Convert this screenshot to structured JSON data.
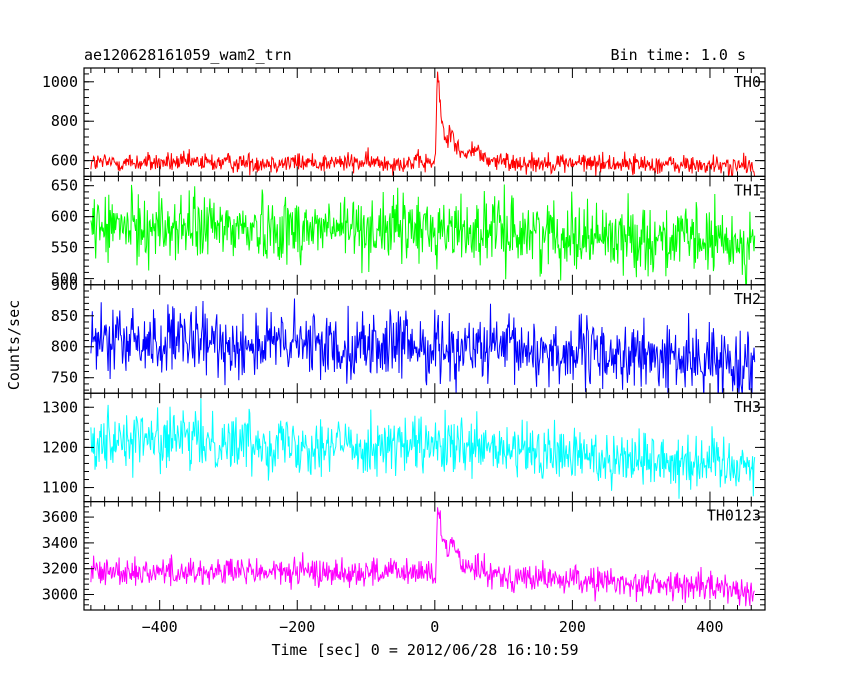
{
  "header": {
    "title": "ae120628161059_wam2_trn",
    "bin_time": "Bin time: 1.0 s"
  },
  "chart_data": {
    "type": "line",
    "xlabel": "Time [sec] 0 = 2012/06/28 16:10:59",
    "ylabel": "Counts/sec",
    "xlim": [
      -510,
      480
    ],
    "x_ticks": [
      -400,
      -200,
      0,
      200,
      400
    ],
    "x_tick_labels": [
      "−400",
      "−200",
      "0",
      "200",
      "400"
    ],
    "x_range": [
      -500,
      465
    ],
    "panels": [
      {
        "name": "TH0",
        "color": "#ff0000",
        "ylim": [
          520,
          1070
        ],
        "y_ticks": [
          600,
          800,
          1000
        ],
        "y_tick_labels": [
          "600",
          "800",
          "1000"
        ],
        "baseline": [
          [
            -500,
            590
          ],
          [
            0,
            590
          ],
          [
            200,
            590
          ],
          [
            465,
            570
          ]
        ],
        "noise": 25,
        "features": [
          {
            "t": 4,
            "amp": 470,
            "rise": 2,
            "decay": 8
          },
          {
            "t": 25,
            "amp": 130,
            "rise": 6,
            "decay": 12
          },
          {
            "t": 58,
            "amp": 70,
            "rise": 8,
            "decay": 12
          }
        ]
      },
      {
        "name": "TH1",
        "color": "#00ff00",
        "ylim": [
          490,
          665
        ],
        "y_ticks": [
          500,
          550,
          600,
          650
        ],
        "y_tick_labels": [
          "500",
          "550",
          "600",
          "650"
        ],
        "baseline": [
          [
            -500,
            583
          ],
          [
            0,
            580
          ],
          [
            200,
            572
          ],
          [
            465,
            555
          ]
        ],
        "noise": 27,
        "features": []
      },
      {
        "name": "TH2",
        "color": "#0000ff",
        "ylim": [
          725,
          900
        ],
        "y_ticks": [
          750,
          800,
          850,
          900
        ],
        "y_tick_labels": [
          "750",
          "800",
          "850",
          "900"
        ],
        "baseline": [
          [
            -500,
            808
          ],
          [
            0,
            800
          ],
          [
            200,
            790
          ],
          [
            465,
            772
          ]
        ],
        "noise": 27,
        "features": []
      },
      {
        "name": "TH3",
        "color": "#00ffff",
        "ylim": [
          1065,
          1335
        ],
        "y_ticks": [
          1100,
          1200,
          1300
        ],
        "y_tick_labels": [
          "1100",
          "1200",
          "1300"
        ],
        "baseline": [
          [
            -500,
            1225
          ],
          [
            0,
            1200
          ],
          [
            200,
            1180
          ],
          [
            465,
            1160
          ]
        ],
        "noise": 36,
        "features": []
      },
      {
        "name": "TH0123",
        "color": "#ff00ff",
        "ylim": [
          2880,
          3720
        ],
        "y_ticks": [
          3000,
          3200,
          3400,
          3600
        ],
        "y_tick_labels": [
          "3000",
          "3200",
          "3400",
          "3600"
        ],
        "baseline": [
          [
            -500,
            3180
          ],
          [
            0,
            3170
          ],
          [
            200,
            3110
          ],
          [
            465,
            3040
          ]
        ],
        "noise": 55,
        "features": [
          {
            "t": 5,
            "amp": 520,
            "rise": 2,
            "decay": 9
          },
          {
            "t": 26,
            "amp": 200,
            "rise": 6,
            "decay": 14
          },
          {
            "t": 60,
            "amp": 90,
            "rise": 8,
            "decay": 14
          }
        ]
      }
    ]
  }
}
